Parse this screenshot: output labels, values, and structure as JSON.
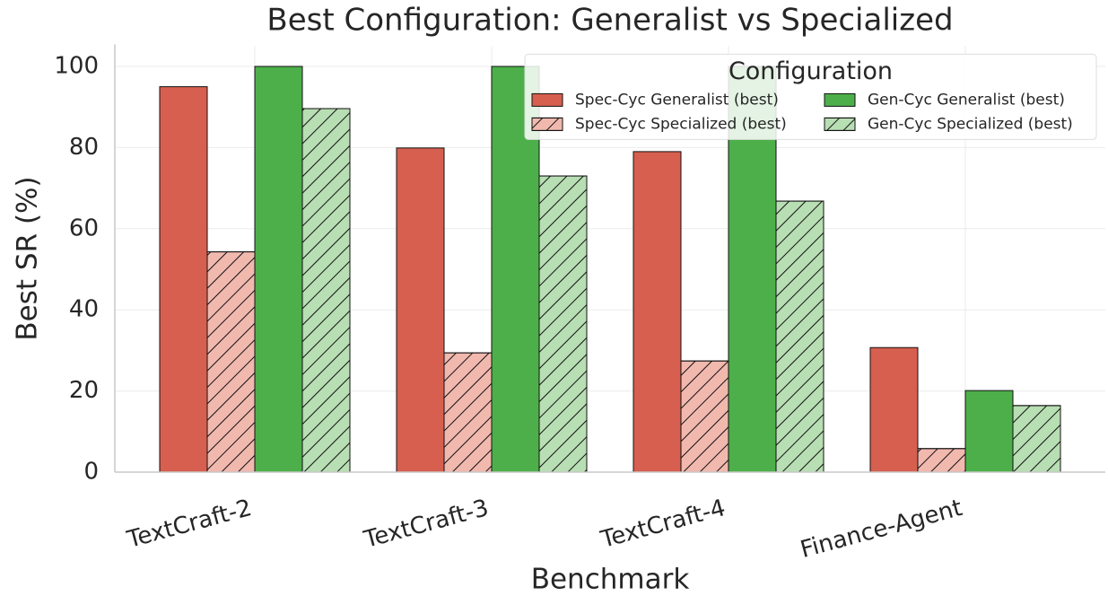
{
  "chart_data": {
    "type": "bar",
    "title": "Best Configuration: Generalist vs Specialized",
    "x_label": "Benchmark",
    "y_label": "Best SR (%)",
    "categories": [
      "TextCraft-2",
      "TextCraft-3",
      "TextCraft-4",
      "Finance-Agent"
    ],
    "series": [
      {
        "name": "Spec-Cyc Generalist (best)",
        "color": "#d65f4f",
        "hatch": false,
        "values": [
          95,
          79.9,
          79,
          30.7
        ]
      },
      {
        "name": "Spec-Cyc Specialized (best)",
        "color": "#f1b8ae",
        "hatch": true,
        "values": [
          54.3,
          29.4,
          27.4,
          5.8
        ]
      },
      {
        "name": "Gen-Cyc Generalist (best)",
        "color": "#4daf4a",
        "hatch": false,
        "values": [
          100,
          100,
          100,
          20.1
        ]
      },
      {
        "name": "Gen-Cyc Specialized (best)",
        "color": "#b8deb3",
        "hatch": true,
        "values": [
          89.6,
          73,
          66.8,
          16.4
        ]
      }
    ],
    "legend_title": "Configuration",
    "legend": "upper right",
    "ylim": [
      0,
      105
    ],
    "yticks": [
      0,
      20,
      40,
      60,
      80,
      100
    ],
    "grid": true
  }
}
